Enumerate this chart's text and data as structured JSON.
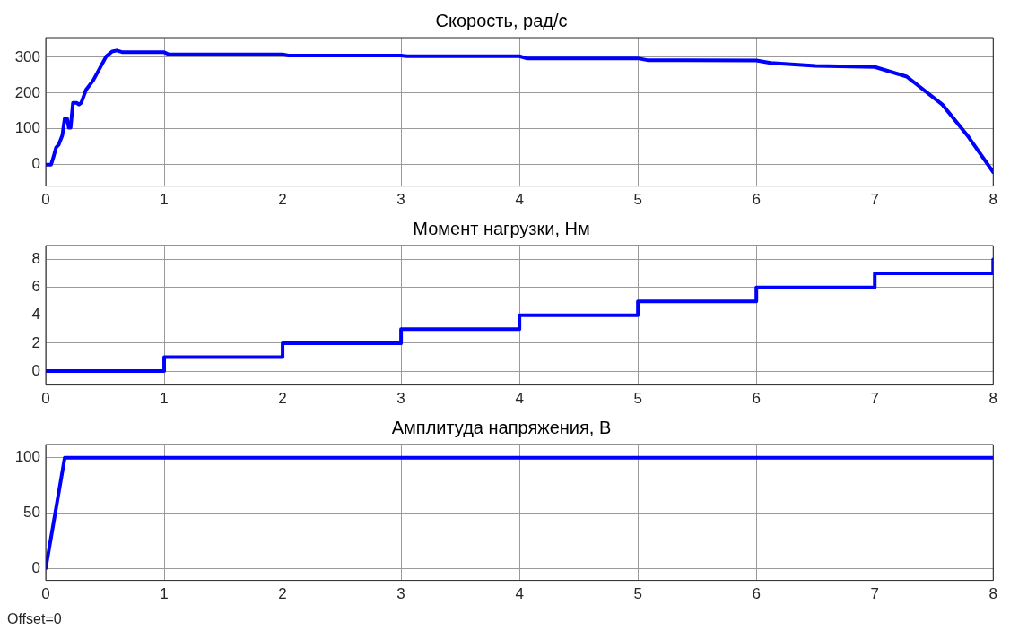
{
  "chart_data": [
    {
      "type": "line",
      "title": "Скорость, рад/с",
      "xlim": [
        0,
        8
      ],
      "xticks": [
        0,
        1,
        2,
        3,
        4,
        5,
        6,
        7,
        8
      ],
      "ylim": [
        -60,
        355
      ],
      "yticks": [
        0,
        100,
        200,
        300
      ],
      "grid": true,
      "legend": false,
      "marker": "none",
      "line_style": "solid",
      "series": [
        {
          "color": "#0000ff",
          "x": [
            0,
            0.045,
            0.0625,
            0.0875,
            0.11,
            0.14,
            0.16,
            0.18,
            0.195,
            0.21,
            0.23,
            0.26,
            0.28,
            0.3,
            0.34,
            0.4,
            0.51,
            0.56,
            0.6,
            0.65,
            1,
            1.04,
            2,
            2.05,
            3,
            3.05,
            3.76,
            4,
            4.06,
            5,
            5.08,
            6,
            6.12,
            6.5,
            7,
            7.27,
            7.57,
            7.79,
            8
          ],
          "values": [
            0,
            0,
            18,
            48,
            56,
            82,
            129,
            129,
            103,
            103,
            173,
            173,
            168,
            173,
            209,
            235,
            302,
            316,
            319,
            314,
            314,
            308,
            308,
            305,
            305,
            303,
            303,
            303,
            297,
            297,
            292,
            291,
            284,
            276,
            273,
            246,
            168,
            78,
            -21
          ]
        }
      ]
    },
    {
      "type": "step",
      "title": "Момент нагрузки, Нм",
      "xlim": [
        0,
        8
      ],
      "xticks": [
        0,
        1,
        2,
        3,
        4,
        5,
        6,
        7,
        8
      ],
      "ylim": [
        -1,
        9
      ],
      "yticks": [
        0,
        2,
        4,
        6,
        8
      ],
      "grid": true,
      "legend": false,
      "marker": "none",
      "line_style": "solid",
      "series": [
        {
          "color": "#0000ff",
          "x": [
            0,
            1,
            2,
            3,
            4,
            5,
            6,
            7,
            8
          ],
          "values": [
            0,
            1,
            2,
            3,
            4,
            5,
            6,
            7,
            8
          ]
        }
      ]
    },
    {
      "type": "line",
      "title": "Амплитуда напряжения, В",
      "xlim": [
        0,
        8
      ],
      "xticks": [
        0,
        1,
        2,
        3,
        4,
        5,
        6,
        7,
        8
      ],
      "ylim": [
        -11,
        112
      ],
      "yticks": [
        0,
        50,
        100
      ],
      "grid": true,
      "legend": false,
      "marker": "none",
      "line_style": "solid",
      "series": [
        {
          "color": "#0000ff",
          "x": [
            0,
            0.16,
            8
          ],
          "values": [
            0,
            100,
            100
          ]
        }
      ],
      "annotations": [
        "Offset=0"
      ]
    }
  ]
}
